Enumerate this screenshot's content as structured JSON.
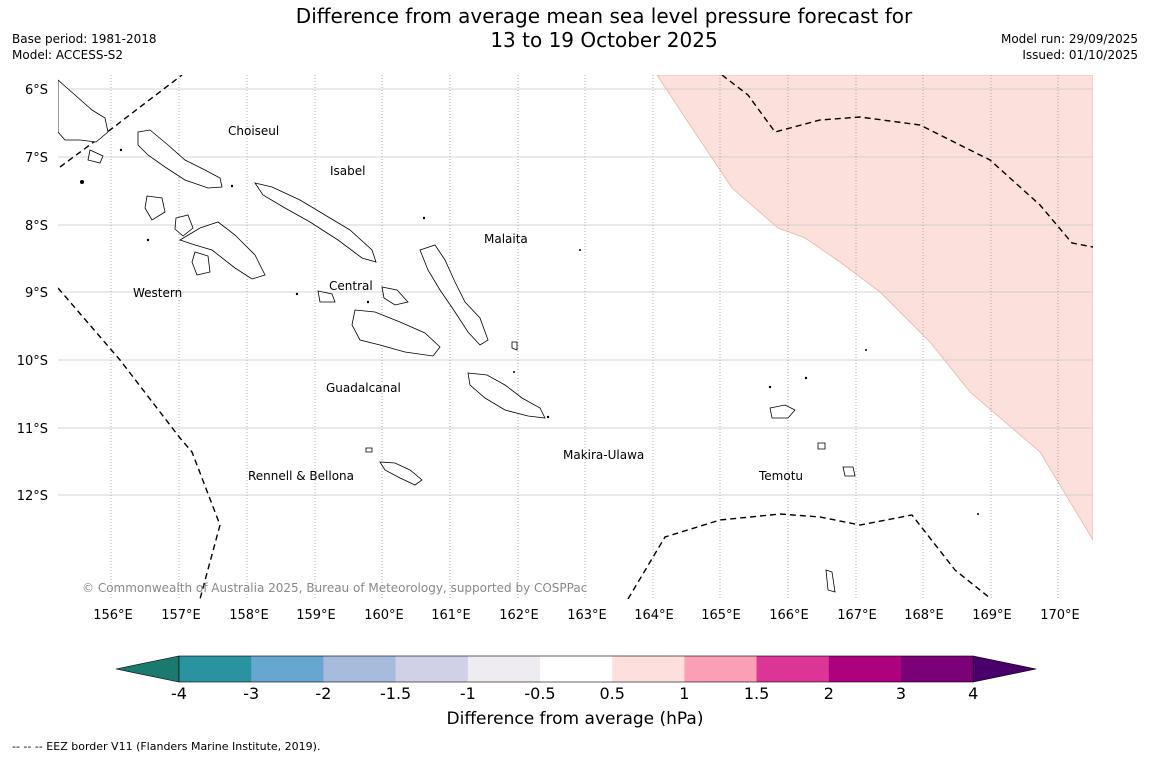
{
  "title": {
    "line1": "Difference from average mean sea level pressure forecast for",
    "line2": "13 to 19 October 2025"
  },
  "meta_left": {
    "base_period": "Base period: 1981-2018",
    "model": "Model: ACCESS-S2"
  },
  "meta_right": {
    "model_run": "Model run: 29/09/2025",
    "issued": "Issued: 01/10/2025"
  },
  "map": {
    "lat_labels": [
      "6°S",
      "7°S",
      "8°S",
      "9°S",
      "10°S",
      "11°S",
      "12°S"
    ],
    "lon_labels": [
      "156°E",
      "157°E",
      "158°E",
      "159°E",
      "160°E",
      "161°E",
      "162°E",
      "163°E",
      "164°E",
      "165°E",
      "166°E",
      "167°E",
      "168°E",
      "169°E",
      "170°E"
    ],
    "region_labels": [
      "Choiseul",
      "Isabel",
      "Malaita",
      "Western",
      "Central",
      "Guadalcanal",
      "Makira-Ulawa",
      "Rennell & Bellona",
      "Temotu"
    ],
    "copyright": "© Commonwealth of Australia 2025, Bureau of Meteorology, supported by COSPPac",
    "anomaly_fill_color": "#fce0dc"
  },
  "colorbar": {
    "ticks": [
      "-4",
      "-3",
      "-2",
      "-1.5",
      "-1",
      "-0.5",
      "0.5",
      "1",
      "1.5",
      "2",
      "3",
      "4"
    ],
    "colors": [
      "#1a7a70",
      "#2993a0",
      "#67a7cf",
      "#a7bbdc",
      "#d0d1e6",
      "#eeecf1",
      "#ffffff",
      "#fde0dd",
      "#fa9fb5",
      "#dd3497",
      "#ae017e",
      "#7a0177",
      "#49006a"
    ],
    "label": "Difference from average (hPa)"
  },
  "footnote": "--  --  -- EEZ border V11 (Flanders Marine Institute, 2019)."
}
